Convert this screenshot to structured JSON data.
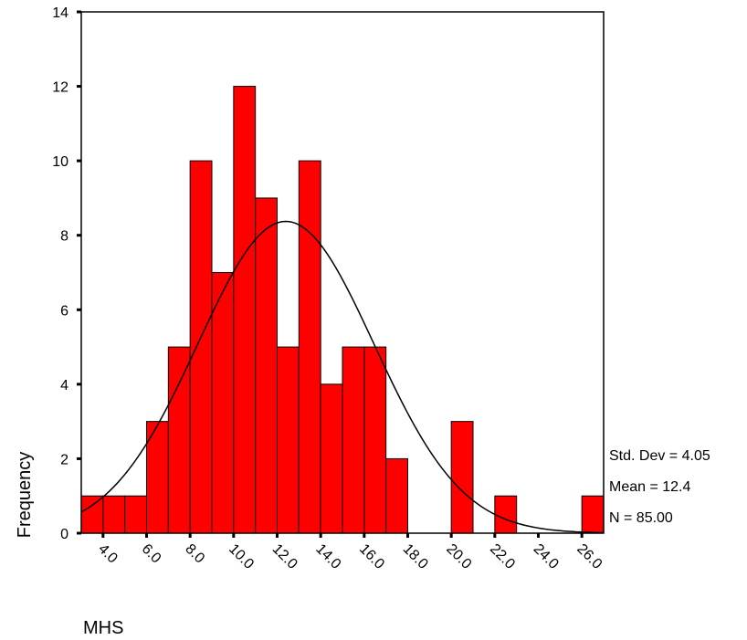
{
  "chart_data": {
    "type": "bar",
    "subtype": "histogram",
    "xlabel": "MHS",
    "ylabel": "Frequency",
    "ylim": [
      0,
      14
    ],
    "xlim": [
      3.0,
      27.0
    ],
    "bin_width": 1.0,
    "yticks": [
      0,
      2,
      4,
      6,
      8,
      10,
      12,
      14
    ],
    "xticks": [
      4.0,
      6.0,
      8.0,
      10.0,
      12.0,
      14.0,
      16.0,
      18.0,
      20.0,
      22.0,
      24.0,
      26.0
    ],
    "xtick_labels": [
      "4.0",
      "6.0",
      "8.0",
      "10.0",
      "12.0",
      "14.0",
      "16.0",
      "18.0",
      "20.0",
      "22.0",
      "24.0",
      "26.0"
    ],
    "bins": [
      {
        "center": 3.5,
        "value": 1
      },
      {
        "center": 4.5,
        "value": 1
      },
      {
        "center": 5.5,
        "value": 1
      },
      {
        "center": 6.5,
        "value": 3
      },
      {
        "center": 7.5,
        "value": 5
      },
      {
        "center": 8.5,
        "value": 10
      },
      {
        "center": 9.5,
        "value": 7
      },
      {
        "center": 10.5,
        "value": 12
      },
      {
        "center": 11.5,
        "value": 9
      },
      {
        "center": 12.5,
        "value": 5
      },
      {
        "center": 13.5,
        "value": 10
      },
      {
        "center": 14.5,
        "value": 4
      },
      {
        "center": 15.5,
        "value": 5
      },
      {
        "center": 16.5,
        "value": 5
      },
      {
        "center": 17.5,
        "value": 2
      },
      {
        "center": 20.5,
        "value": 3
      },
      {
        "center": 22.5,
        "value": 1
      },
      {
        "center": 26.5,
        "value": 1
      }
    ],
    "normal_curve": {
      "mean": 12.4,
      "std": 4.05,
      "n": 85
    },
    "stats": {
      "std_dev": "Std. Dev = 4.05",
      "mean": "Mean = 12.4",
      "n": "N = 85.00"
    },
    "colors": {
      "bar_fill": "#ff0000",
      "bar_stroke": "#000000",
      "curve": "#000000"
    },
    "grid": false,
    "legend": "none"
  }
}
